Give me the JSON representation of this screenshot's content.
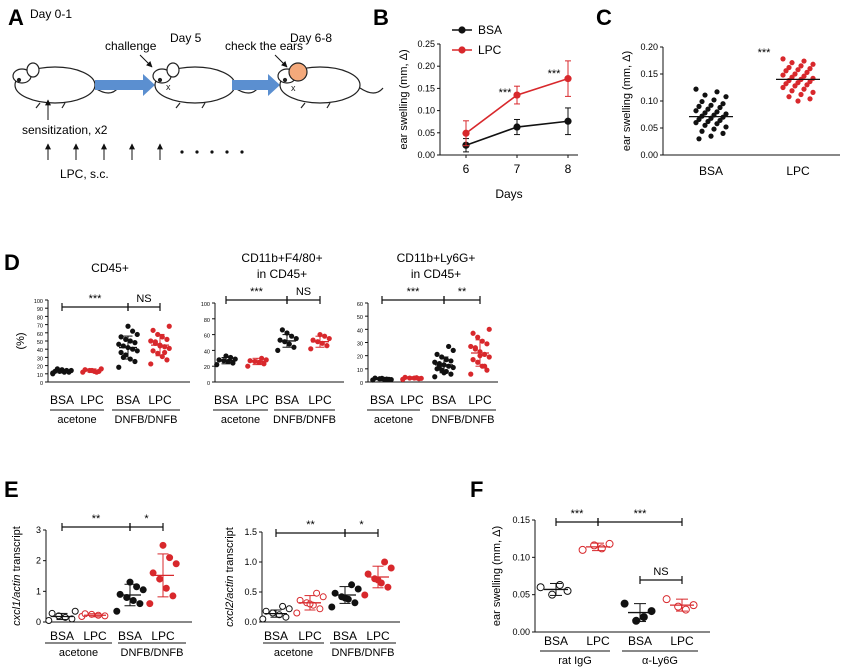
{
  "colors": {
    "bsa": "#111111",
    "lpc": "#d8282c",
    "arrow": "#5b8fd0",
    "ear": "#f4a97b"
  },
  "panel_letters": [
    "A",
    "B",
    "C",
    "D",
    "E",
    "F"
  ],
  "panel_a": {
    "day01": "Day 0-1",
    "challenge": "challenge",
    "day5": "Day 5",
    "check": "check the ears",
    "day68": "Day 6-8",
    "sensitization": "sensitization, x2",
    "lpc_sc": "LPC, s.c."
  },
  "chart_data": [
    {
      "id": "B",
      "type": "line",
      "ylabel": "ear swelling (mm, Δ)",
      "xlabel": "Days",
      "x": [
        6,
        7,
        8
      ],
      "ylim": [
        0,
        0.25
      ],
      "yticks": [
        "0.00",
        "0.05",
        "0.10",
        "0.15",
        "0.20",
        "0.25"
      ],
      "series": [
        {
          "name": "BSA",
          "values": [
            0.022,
            0.063,
            0.076
          ],
          "err": [
            0.015,
            0.017,
            0.03
          ]
        },
        {
          "name": "LPC",
          "values": [
            0.049,
            0.135,
            0.172
          ],
          "err": [
            0.028,
            0.02,
            0.04
          ]
        }
      ],
      "annotations": [
        {
          "x": 7,
          "text": "***"
        },
        {
          "x": 8,
          "text": "***"
        }
      ],
      "legend": "top-left"
    },
    {
      "id": "C",
      "type": "scatter",
      "ylabel": "ear swelling (mm, Δ)",
      "categories": [
        "BSA",
        "LPC"
      ],
      "ylim": [
        0,
        0.2
      ],
      "yticks": [
        "0.00",
        "0.05",
        "0.10",
        "0.15",
        "0.20"
      ],
      "means": [
        0.071,
        0.14
      ],
      "series": [
        {
          "name": "BSA",
          "values": [
            0.122,
            0.117,
            0.111,
            0.108,
            0.102,
            0.099,
            0.095,
            0.092,
            0.09,
            0.088,
            0.085,
            0.082,
            0.08,
            0.078,
            0.076,
            0.074,
            0.072,
            0.07,
            0.068,
            0.066,
            0.064,
            0.062,
            0.06,
            0.058,
            0.055,
            0.052,
            0.048,
            0.044,
            0.04,
            0.035,
            0.03
          ]
        },
        {
          "name": "LPC",
          "values": [
            0.178,
            0.174,
            0.171,
            0.168,
            0.165,
            0.162,
            0.16,
            0.158,
            0.156,
            0.153,
            0.15,
            0.148,
            0.146,
            0.144,
            0.142,
            0.14,
            0.138,
            0.136,
            0.134,
            0.132,
            0.13,
            0.128,
            0.125,
            0.122,
            0.119,
            0.116,
            0.112,
            0.108,
            0.104,
            0.1
          ]
        }
      ],
      "annotations": [
        {
          "text": "***"
        }
      ]
    },
    {
      "id": "D1",
      "type": "scatter",
      "title": [
        "CD45+"
      ],
      "ylabel": "(%)",
      "ylim": [
        0,
        100
      ],
      "yticks": [
        "0",
        "10",
        "20",
        "30",
        "40",
        "50",
        "60",
        "70",
        "80",
        "90",
        "100"
      ],
      "categories": [
        "BSA",
        "LPC",
        "BSA",
        "LPC"
      ],
      "groups": [
        "acetone",
        "DNFB/DNFB"
      ],
      "means": [
        13,
        14,
        42,
        45
      ],
      "err": [
        2,
        2,
        14,
        13
      ],
      "values": [
        [
          11,
          12,
          12,
          13,
          13,
          14,
          14,
          15,
          16,
          10
        ],
        [
          12,
          13,
          13,
          14,
          15,
          16,
          12,
          14
        ],
        [
          18,
          25,
          28,
          33,
          36,
          38,
          40,
          42,
          44,
          46,
          48,
          50,
          52,
          55,
          58,
          62,
          68,
          30
        ],
        [
          22,
          27,
          31,
          35,
          38,
          41,
          43,
          45,
          47,
          50,
          52,
          55,
          58,
          63,
          68,
          36,
          44,
          49
        ]
      ],
      "brackets": [
        {
          "from": 0,
          "to": 2,
          "text": "***"
        },
        {
          "from": 2,
          "to": 3,
          "text": "NS"
        }
      ]
    },
    {
      "id": "D2",
      "type": "scatter",
      "title": [
        "CD11b+F4/80+",
        "in CD45+"
      ],
      "ylim": [
        0,
        100
      ],
      "yticks": [
        "0",
        "20",
        "40",
        "60",
        "80",
        "100"
      ],
      "categories": [
        "BSA",
        "LPC",
        "BSA",
        "LPC"
      ],
      "groups": [
        "acetone",
        "DNFB/DNFB"
      ],
      "means": [
        27,
        26,
        52,
        51
      ],
      "err": [
        4,
        4,
        8,
        7
      ],
      "values": [
        [
          22,
          24,
          26,
          27,
          28,
          29,
          31,
          33
        ],
        [
          20,
          23,
          25,
          26,
          27,
          28,
          30
        ],
        [
          40,
          44,
          48,
          51,
          53,
          55,
          58,
          62,
          66
        ],
        [
          42,
          46,
          49,
          51,
          53,
          55,
          58,
          60
        ]
      ],
      "brackets": [
        {
          "from": 0,
          "to": 2,
          "text": "***"
        },
        {
          "from": 2,
          "to": 3,
          "text": "NS"
        }
      ]
    },
    {
      "id": "D3",
      "type": "scatter",
      "title": [
        "CD11b+Ly6G+",
        "in CD45+"
      ],
      "ylim": [
        0,
        60
      ],
      "yticks": [
        "0",
        "10",
        "20",
        "30",
        "40",
        "50",
        "60"
      ],
      "categories": [
        "BSA",
        "LPC",
        "BSA",
        "LPC"
      ],
      "groups": [
        "acetone",
        "DNFB/DNFB"
      ],
      "means": [
        2,
        3,
        13,
        22
      ],
      "err": [
        1,
        1,
        6,
        10
      ],
      "values": [
        [
          1.5,
          2,
          2,
          2.5,
          3,
          1.8,
          2.2,
          2.8
        ],
        [
          2,
          2.5,
          3,
          3,
          3.5,
          2.8,
          3.2
        ],
        [
          4,
          6,
          8,
          9,
          10,
          11,
          12,
          13,
          14,
          15,
          16,
          17,
          19,
          21,
          24,
          27,
          7,
          12
        ],
        [
          6,
          9,
          12,
          15,
          17,
          19,
          21,
          23,
          25,
          27,
          29,
          31,
          34,
          37,
          40,
          12,
          20,
          26
        ]
      ],
      "brackets": [
        {
          "from": 0,
          "to": 2,
          "text": "***"
        },
        {
          "from": 2,
          "to": 3,
          "text": "**"
        }
      ]
    },
    {
      "id": "E1",
      "type": "scatter",
      "ylabel_italic": "cxcl1/actin",
      "ylabel_rest": " transcript",
      "ylim": [
        0,
        3
      ],
      "yticks": [
        "0",
        "1",
        "2",
        "3"
      ],
      "categories": [
        "BSA",
        "LPC",
        "BSA",
        "LPC"
      ],
      "groups": [
        "acetone",
        "DNFB/DNFB"
      ],
      "means": [
        0.18,
        0.22,
        0.88,
        1.52
      ],
      "err": [
        0.1,
        0.05,
        0.35,
        0.7
      ],
      "values": [
        [
          0.05,
          0.1,
          0.15,
          0.2,
          0.28,
          0.35
        ],
        [
          0.18,
          0.2,
          0.22,
          0.25,
          0.27
        ],
        [
          0.35,
          0.6,
          0.7,
          0.8,
          0.9,
          1.05,
          1.15,
          1.3
        ],
        [
          0.6,
          0.85,
          1.1,
          1.4,
          1.6,
          1.9,
          2.1,
          2.5
        ]
      ],
      "brackets": [
        {
          "from": 0,
          "to": 2,
          "text": "**"
        },
        {
          "from": 2,
          "to": 3,
          "text": "*"
        }
      ]
    },
    {
      "id": "E2",
      "type": "scatter",
      "ylabel_italic": "cxcl2/actin",
      "ylabel_rest": " transcript",
      "ylim": [
        0,
        1.5
      ],
      "yticks": [
        "0.0",
        "0.5",
        "1.0",
        "1.5"
      ],
      "categories": [
        "BSA",
        "LPC",
        "BSA",
        "LPC"
      ],
      "groups": [
        "acetone",
        "DNFB/DNFB"
      ],
      "means": [
        0.14,
        0.32,
        0.45,
        0.75
      ],
      "err": [
        0.06,
        0.12,
        0.14,
        0.18
      ],
      "values": [
        [
          0.05,
          0.08,
          0.12,
          0.15,
          0.18,
          0.22,
          0.26
        ],
        [
          0.15,
          0.22,
          0.28,
          0.32,
          0.36,
          0.42,
          0.48,
          0.3
        ],
        [
          0.25,
          0.32,
          0.38,
          0.42,
          0.48,
          0.55,
          0.62,
          0.4
        ],
        [
          0.45,
          0.58,
          0.65,
          0.72,
          0.8,
          0.9,
          1.0,
          0.7
        ]
      ],
      "brackets": [
        {
          "from": 0,
          "to": 2,
          "text": "**"
        },
        {
          "from": 2,
          "to": 3,
          "text": "*"
        }
      ]
    },
    {
      "id": "F",
      "type": "scatter",
      "ylabel": "ear swelling (mm, Δ)",
      "ylim": [
        0,
        0.15
      ],
      "yticks": [
        "0.00",
        "0.05",
        "0.10",
        "0.15"
      ],
      "categories": [
        "BSA",
        "LPC",
        "BSA",
        "LPC"
      ],
      "groups": [
        "rat IgG",
        "α-Ly6G"
      ],
      "means": [
        0.057,
        0.114,
        0.026,
        0.036
      ],
      "err": [
        0.008,
        0.005,
        0.012,
        0.008
      ],
      "values": [
        [
          0.06,
          0.055,
          0.063,
          0.05
        ],
        [
          0.11,
          0.118,
          0.112,
          0.116
        ],
        [
          0.038,
          0.028,
          0.02,
          0.015
        ],
        [
          0.044,
          0.036,
          0.03,
          0.034
        ]
      ],
      "brackets": [
        {
          "from": 0,
          "to": 1,
          "text": "***"
        },
        {
          "from": 1,
          "to": 3,
          "text": "***"
        },
        {
          "from": 2,
          "to": 3,
          "text": "NS"
        }
      ]
    }
  ]
}
